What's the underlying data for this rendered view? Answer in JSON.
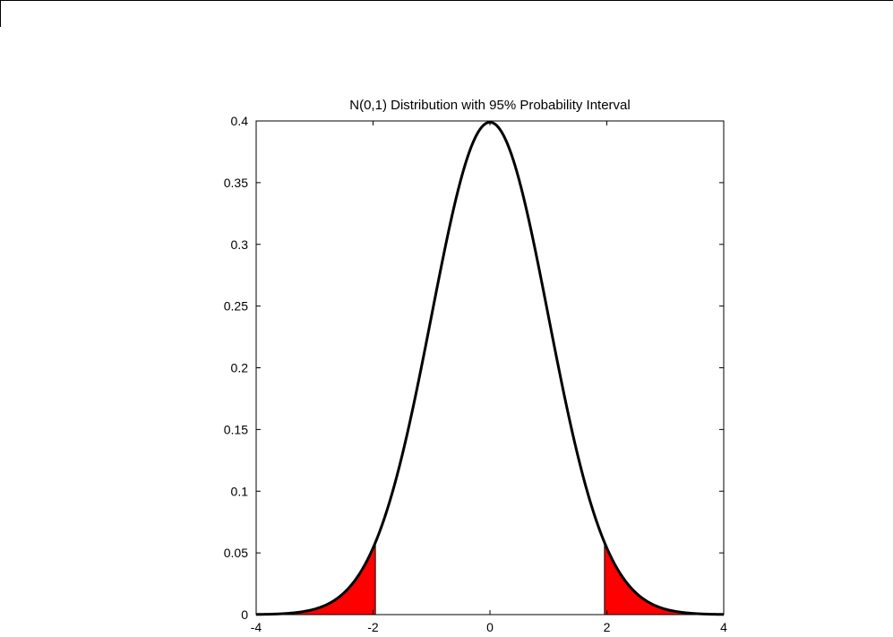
{
  "chart_data": {
    "type": "line",
    "title": "N(0,1) Distribution with 95% Probability Interval",
    "xlabel": "",
    "ylabel": "",
    "xlim": [
      -4,
      4
    ],
    "ylim": [
      0,
      0.4
    ],
    "grid": false,
    "legend": "none",
    "x_ticks": [
      -4,
      -2,
      0,
      2,
      4
    ],
    "x_tick_labels": [
      "-4",
      "-2",
      "0",
      "2",
      "4"
    ],
    "y_ticks": [
      0,
      0.05,
      0.1,
      0.15,
      0.2,
      0.25,
      0.3,
      0.35,
      0.4
    ],
    "y_tick_labels": [
      "0",
      "0.05",
      "0.1",
      "0.15",
      "0.2",
      "0.25",
      "0.3",
      "0.35",
      "0.4"
    ],
    "series": [
      {
        "function": "standard normal pdf",
        "mean": 0,
        "sd": 1,
        "color": "#000000"
      }
    ],
    "shaded_regions": [
      {
        "x_from": -4,
        "x_to": -1.96,
        "color": "#ff0000"
      },
      {
        "x_from": 1.96,
        "x_to": 4,
        "color": "#ff0000"
      }
    ]
  }
}
